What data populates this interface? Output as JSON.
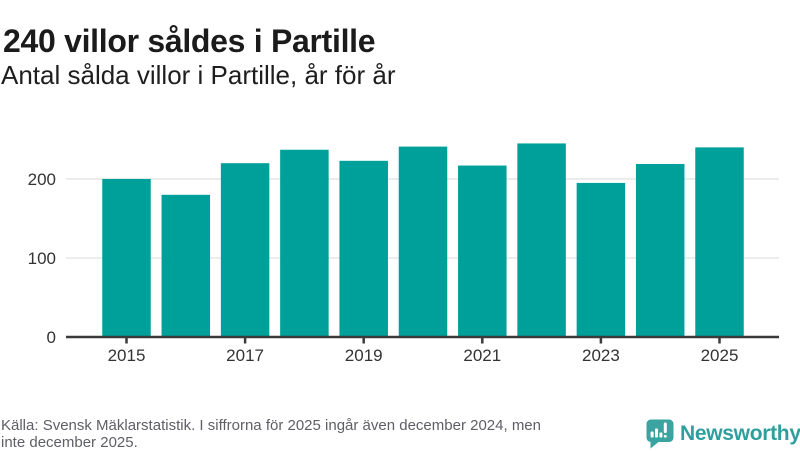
{
  "header": {
    "title": "240 villor såldes i Partille",
    "subtitle": "Antal sålda villor i Partille, år för år"
  },
  "chart_data": {
    "type": "bar",
    "title": "240 villor såldes i Partille",
    "subtitle": "Antal sålda villor i Partille, år för år",
    "categories": [
      "2015",
      "2016",
      "2017",
      "2018",
      "2019",
      "2020",
      "2021",
      "2022",
      "2023",
      "2024",
      "2025"
    ],
    "values": [
      200,
      180,
      220,
      237,
      223,
      241,
      217,
      245,
      195,
      219,
      240
    ],
    "xlabel": "",
    "ylabel": "",
    "ylim": [
      0,
      262
    ],
    "yticks": [
      0,
      100,
      200
    ],
    "xticklabels": [
      "2015",
      "2017",
      "2019",
      "2021",
      "2023",
      "2025"
    ],
    "grid": true,
    "legend": false,
    "bar_color": "#00A09A",
    "grid_color": "#e7e7e7",
    "axis_color": "#3a3a3a",
    "tick_label_color": "#333333"
  },
  "footer": {
    "source_lines": [
      "Källa: Svensk Mäklarstatistik. I siffrorna för 2025 ingår även december 2024, men",
      "inte december 2025."
    ]
  },
  "logo": {
    "brand": "Newsworthy",
    "icon": "bar-chart-speech-bubble-icon",
    "brand_color": "#2f9f9e",
    "icon_color": "#3BA3A0"
  }
}
